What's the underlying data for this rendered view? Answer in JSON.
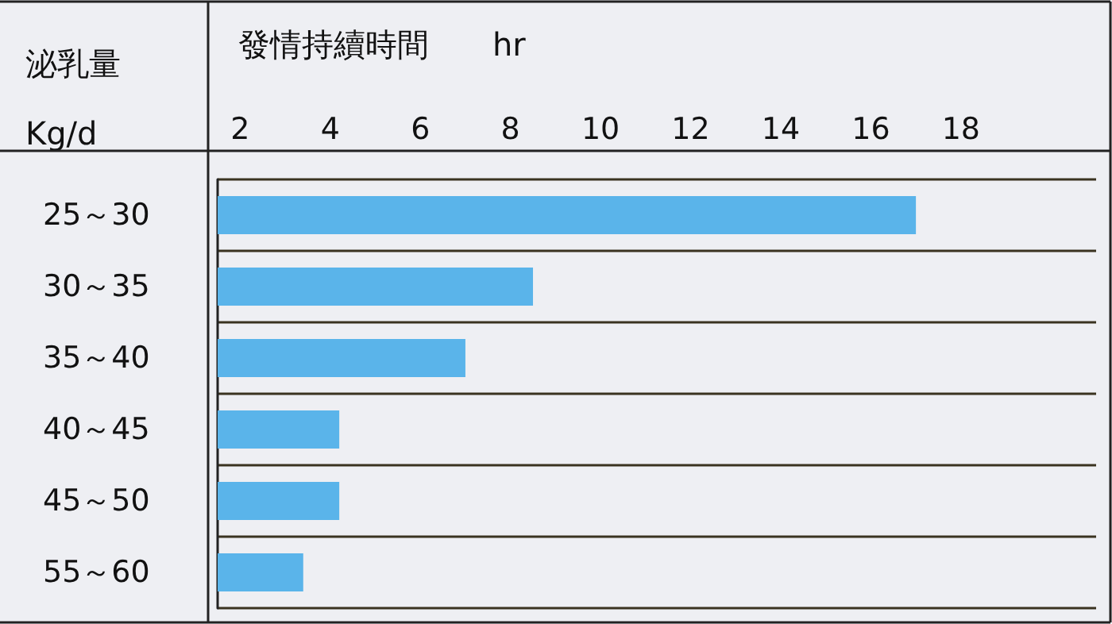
{
  "chart_data": {
    "type": "bar",
    "orientation": "horizontal",
    "xlabel": "發情持續時間　　hr",
    "ylabel": "泌乳量\nKg/d",
    "categories": [
      "25～30",
      "30～35",
      "35～40",
      "40～45",
      "45～50",
      "55～60"
    ],
    "values": [
      17,
      8.5,
      7,
      4.2,
      4.2,
      3.4
    ],
    "color": "#5ab4ea",
    "xlim": [
      1.5,
      21
    ],
    "xticks": [
      2,
      4,
      6,
      8,
      10,
      12,
      14,
      16,
      18
    ],
    "grid": "y"
  }
}
